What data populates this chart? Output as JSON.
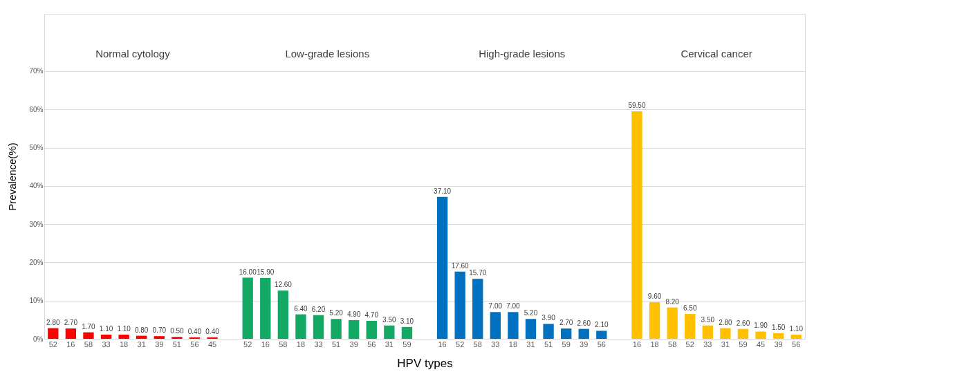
{
  "chart_data": {
    "type": "bar",
    "xlabel": "HPV types",
    "ylabel": "Prevalence(%)",
    "categories": [
      "52",
      "16",
      "58",
      "33",
      "18",
      "31",
      "39",
      "51",
      "56",
      "45",
      null,
      "52",
      "16",
      "58",
      "18",
      "33",
      "51",
      "39",
      "56",
      "31",
      "59",
      null,
      "16",
      "52",
      "58",
      "33",
      "18",
      "31",
      "51",
      "59",
      "39",
      "56",
      null,
      "16",
      "18",
      "58",
      "52",
      "33",
      "31",
      "59",
      "45",
      "39",
      "56"
    ],
    "series": [
      {
        "color": "#ff0000",
        "values": [
          2.8,
          2.7,
          1.7,
          1.1,
          1.1,
          0.8,
          0.7,
          0.5,
          0.4,
          0.4,
          null,
          null,
          null,
          null,
          null,
          null,
          null,
          null,
          null,
          null,
          null,
          null,
          null,
          null,
          null,
          null,
          null,
          null,
          null,
          null,
          null,
          null,
          null,
          null,
          null,
          null,
          null,
          null,
          null,
          null,
          null,
          null,
          null
        ],
        "value_labels": [
          "2.80",
          "2.70",
          "1.70",
          "1.10",
          "1.10",
          "0.80",
          "0.70",
          "0.50",
          "0.40",
          "0.40",
          null,
          null,
          null,
          null,
          null,
          null,
          null,
          null,
          null,
          null,
          null,
          null,
          null,
          null,
          null,
          null,
          null,
          null,
          null,
          null,
          null,
          null,
          null,
          null,
          null,
          null,
          null,
          null,
          null,
          null,
          null,
          null,
          null
        ]
      },
      {
        "color": "#14a865",
        "values": [
          null,
          null,
          null,
          null,
          null,
          null,
          null,
          null,
          null,
          null,
          null,
          16.0,
          15.9,
          12.6,
          6.4,
          6.2,
          5.2,
          4.9,
          4.7,
          3.5,
          3.1,
          null,
          null,
          null,
          null,
          null,
          null,
          null,
          null,
          null,
          null,
          null,
          null,
          null,
          null,
          null,
          null,
          null,
          null,
          null,
          null,
          null,
          null
        ],
        "value_labels": [
          null,
          null,
          null,
          null,
          null,
          null,
          null,
          null,
          null,
          null,
          null,
          "16.00",
          "15.90",
          "12.60",
          "6.40",
          "6.20",
          "5.20",
          "4.90",
          "4.70",
          "3.50",
          "3.10",
          null,
          null,
          null,
          null,
          null,
          null,
          null,
          null,
          null,
          null,
          null,
          null,
          null,
          null,
          null,
          null,
          null,
          null,
          null,
          null,
          null,
          null
        ]
      },
      {
        "color": "#0070c0",
        "values": [
          null,
          null,
          null,
          null,
          null,
          null,
          null,
          null,
          null,
          null,
          null,
          null,
          null,
          null,
          null,
          null,
          null,
          null,
          null,
          null,
          null,
          null,
          37.1,
          17.6,
          15.7,
          7.0,
          7.0,
          5.2,
          3.9,
          2.7,
          2.6,
          2.1,
          null,
          null,
          null,
          null,
          null,
          null,
          null,
          null,
          null,
          null,
          null
        ],
        "value_labels": [
          null,
          null,
          null,
          null,
          null,
          null,
          null,
          null,
          null,
          null,
          null,
          null,
          null,
          null,
          null,
          null,
          null,
          null,
          null,
          null,
          null,
          null,
          "37.10",
          "17.60",
          "15.70",
          "7.00",
          "7.00",
          "5.20",
          "3.90",
          "2.70",
          "2.60",
          "2.10",
          null,
          null,
          null,
          null,
          null,
          null,
          null,
          null,
          null,
          null,
          null
        ]
      },
      {
        "color": "#ffc000",
        "values": [
          null,
          null,
          null,
          null,
          null,
          null,
          null,
          null,
          null,
          null,
          null,
          null,
          null,
          null,
          null,
          null,
          null,
          null,
          null,
          null,
          null,
          null,
          null,
          null,
          null,
          null,
          null,
          null,
          null,
          null,
          null,
          null,
          null,
          59.5,
          9.6,
          8.2,
          6.5,
          3.5,
          2.8,
          2.6,
          1.9,
          1.5,
          1.1
        ],
        "value_labels": [
          null,
          null,
          null,
          null,
          null,
          null,
          null,
          null,
          null,
          null,
          null,
          null,
          null,
          null,
          null,
          null,
          null,
          null,
          null,
          null,
          null,
          null,
          null,
          null,
          null,
          null,
          null,
          null,
          null,
          null,
          null,
          null,
          null,
          "59.50",
          "9.60",
          "8.20",
          "6.50",
          "3.50",
          "2.80",
          "2.60",
          "1.90",
          "1.50",
          "1.10"
        ]
      }
    ],
    "ylim": [
      0,
      85
    ],
    "yticks": [
      {
        "value": 0,
        "label": "0%"
      },
      {
        "value": 10,
        "label": "10%"
      },
      {
        "value": 20,
        "label": "20%"
      },
      {
        "value": 30,
        "label": "30%"
      },
      {
        "value": 40,
        "label": "40%"
      },
      {
        "value": 50,
        "label": "50%"
      },
      {
        "value": 60,
        "label": "60%"
      },
      {
        "value": 70,
        "label": "70%"
      }
    ],
    "annotations": [
      "Normal cytology",
      "Low-grade lesions",
      "High-grade lesions",
      "Cervical cancer"
    ],
    "grid": "y",
    "legend": false
  }
}
